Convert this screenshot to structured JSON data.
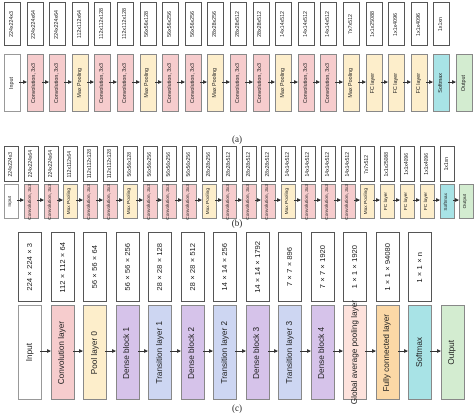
{
  "colors": {
    "conv": "#f6cccd",
    "pool": "#fdeecb",
    "fc": "#fdeecb",
    "softmax": "#a8e3e6",
    "output": "#d3ecd0",
    "input": "#ffffff",
    "dense": "#d6c3ea",
    "transition": "#cdd6f2",
    "gap": "#fde2dc",
    "fc_c": "#fbd8a6"
  },
  "panel_a": {
    "caption": "(a)",
    "layers": [
      {
        "label": "Input",
        "dim": "224x224x3",
        "type": "input"
      },
      {
        "label": "Convolution, 3x3",
        "dim": "224x224x64",
        "type": "conv"
      },
      {
        "label": "Convolution, 3x3",
        "dim": "224x224x64",
        "type": "conv"
      },
      {
        "label": "Max Pooling",
        "dim": "112x112x64",
        "type": "pool"
      },
      {
        "label": "Convolution, 3x3",
        "dim": "112x112x128",
        "type": "conv"
      },
      {
        "label": "Convolution, 3x3",
        "dim": "112x112x128",
        "type": "conv"
      },
      {
        "label": "Max Pooling",
        "dim": "56x56x128",
        "type": "pool"
      },
      {
        "label": "Convolution, 3x3",
        "dim": "56x56x256",
        "type": "conv"
      },
      {
        "label": "Convolution, 3x3",
        "dim": "56x56x256",
        "type": "conv"
      },
      {
        "label": "Max Pooling",
        "dim": "28x28x256",
        "type": "pool"
      },
      {
        "label": "Convolution, 3x3",
        "dim": "28x28x512",
        "type": "conv"
      },
      {
        "label": "Convolution, 3x3",
        "dim": "28x28x512",
        "type": "conv"
      },
      {
        "label": "Max Pooling",
        "dim": "14x14x512",
        "type": "pool"
      },
      {
        "label": "Convolution, 3x3",
        "dim": "14x14x512",
        "type": "conv"
      },
      {
        "label": "Convolution, 3x3",
        "dim": "14x14x512",
        "type": "conv"
      },
      {
        "label": "Max Pooling",
        "dim": "7x7x512",
        "type": "pool"
      },
      {
        "label": "FC layer",
        "dim": "1x1x25088",
        "type": "fc"
      },
      {
        "label": "FC layer",
        "dim": "1x1x4096",
        "type": "fc"
      },
      {
        "label": "FC layer",
        "dim": "1x1x4096",
        "type": "fc"
      },
      {
        "label": "Softmax",
        "dim": "1x1xn",
        "type": "softmax"
      },
      {
        "label": "Output",
        "dim": "",
        "type": "output"
      }
    ]
  },
  "panel_b": {
    "caption": "(b)",
    "layers": [
      {
        "label": "Input",
        "dim": "224x224x3",
        "type": "input"
      },
      {
        "label": "Convolution, 3x3",
        "dim": "224x224x64",
        "type": "conv"
      },
      {
        "label": "Convolution, 3x3",
        "dim": "224x224x64",
        "type": "conv"
      },
      {
        "label": "Max Pooling",
        "dim": "112x112x64",
        "type": "pool"
      },
      {
        "label": "Convolution, 3x3",
        "dim": "112x112x128",
        "type": "conv"
      },
      {
        "label": "Convolution, 3x3",
        "dim": "112x112x128",
        "type": "conv"
      },
      {
        "label": "Max Pooling",
        "dim": "56x56x128",
        "type": "pool"
      },
      {
        "label": "Convolution, 3x3",
        "dim": "56x56x256",
        "type": "conv"
      },
      {
        "label": "Convolution, 3x3",
        "dim": "56x56x256",
        "type": "conv"
      },
      {
        "label": "Convolution, 3x3",
        "dim": "56x56x256",
        "type": "conv"
      },
      {
        "label": "Max Pooling",
        "dim": "28x28x256",
        "type": "pool"
      },
      {
        "label": "Convolution, 3x3",
        "dim": "28x28x512",
        "type": "conv"
      },
      {
        "label": "Convolution, 3x3",
        "dim": "28x28x512",
        "type": "conv"
      },
      {
        "label": "Convolution, 3x3",
        "dim": "28x28x512",
        "type": "conv"
      },
      {
        "label": "Max Pooling",
        "dim": "14x14x512",
        "type": "pool"
      },
      {
        "label": "Convolution, 3x3",
        "dim": "14x14x512",
        "type": "conv"
      },
      {
        "label": "Convolution, 3x3",
        "dim": "14x14x512",
        "type": "conv"
      },
      {
        "label": "Convolution, 3x3",
        "dim": "14x14x512",
        "type": "conv"
      },
      {
        "label": "Max Pooling",
        "dim": "7x7x512",
        "type": "pool"
      },
      {
        "label": "FC layer",
        "dim": "1x1x25088",
        "type": "fc"
      },
      {
        "label": "FC layer",
        "dim": "1x1x4096",
        "type": "fc"
      },
      {
        "label": "FC layer",
        "dim": "1x1x4096",
        "type": "fc"
      },
      {
        "label": "Softmax",
        "dim": "1x1xn",
        "type": "softmax"
      },
      {
        "label": "Output",
        "dim": "",
        "type": "output"
      }
    ]
  },
  "panel_c": {
    "caption": "(c)",
    "layers": [
      {
        "label": "Input",
        "dim": "224×224×3",
        "type": "input"
      },
      {
        "label": "Convolution layer",
        "dim": "112×112×64",
        "type": "conv"
      },
      {
        "label": "Pool layer 0",
        "dim": "56×56×64",
        "type": "pool"
      },
      {
        "label": "Dense block 1",
        "dim": "56×56×256",
        "type": "dense"
      },
      {
        "label": "Transition layer 1",
        "dim": "28×28×128",
        "type": "transition"
      },
      {
        "label": "Dense block 2",
        "dim": "28×28×512",
        "type": "dense"
      },
      {
        "label": "Transition layer 2",
        "dim": "14×14×256",
        "type": "transition"
      },
      {
        "label": "Dense block 3",
        "dim": "14×14×1792",
        "type": "dense"
      },
      {
        "label": "Transition layer 3",
        "dim": "7×7×896",
        "type": "transition"
      },
      {
        "label": "Dense block 4",
        "dim": "7×7×1920",
        "type": "dense"
      },
      {
        "label": "Global average pooling layer",
        "dim": "1×1×1920",
        "type": "gap"
      },
      {
        "label": "Fully connected layer",
        "dim": "1×1×94080",
        "type": "fc_c"
      },
      {
        "label": "Softmax",
        "dim": "1×1×n",
        "type": "softmax"
      },
      {
        "label": "Output",
        "dim": "",
        "type": "output"
      }
    ]
  }
}
